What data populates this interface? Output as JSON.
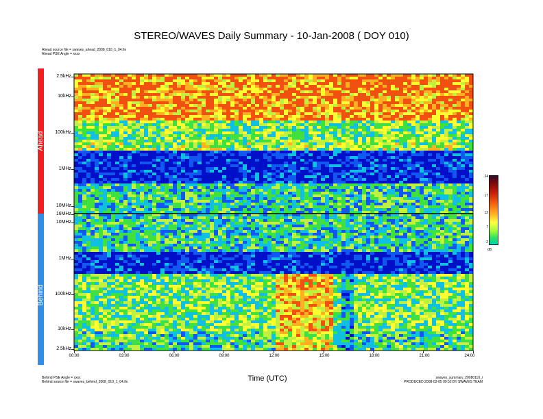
{
  "title": "STEREO/WAVES Daily Summary - 10-Jan-2008 ( DOY 010)",
  "header_left": [
    "Ahead source file = swaves_ahead_2008_010_1_04.fin",
    "Ahead PSE Angle = xxxx"
  ],
  "footer_left": [
    "Behind PSE Angle = xxxx",
    "Behind source file = swaves_behind_2008_010_1_04.fin"
  ],
  "footer_right": [
    "swaves_summary_20080110_i",
    "PRODUCED 2008-02-05 09:52 BY SWAVES TEAM"
  ],
  "colors": {
    "ahead": "#f02020",
    "behind": "#2f8fe8"
  },
  "chart_data": {
    "type": "heatmap",
    "panels": [
      {
        "name": "Ahead",
        "freq_tick_labels": [
          "2.5kHz",
          "10kHz",
          "100kHz",
          "1MHz",
          "10MHz",
          "16MHz"
        ]
      },
      {
        "name": "Behind",
        "freq_tick_labels": [
          "10MHz",
          "1MHz",
          "100kHz",
          "10kHz",
          "2.5kHz"
        ]
      }
    ],
    "x_tick_labels": [
      "00:00",
      "03:00",
      "06:00",
      "09:00",
      "12:00",
      "15:00",
      "18:00",
      "21:00",
      "24:00"
    ],
    "x_range": [
      0,
      24
    ],
    "xlabel": "Time (UTC)",
    "colorbar": {
      "ticks": [
        "24",
        "17",
        "12",
        "7",
        "2"
      ],
      "unit": "dB",
      "range": [
        2,
        24
      ]
    }
  }
}
